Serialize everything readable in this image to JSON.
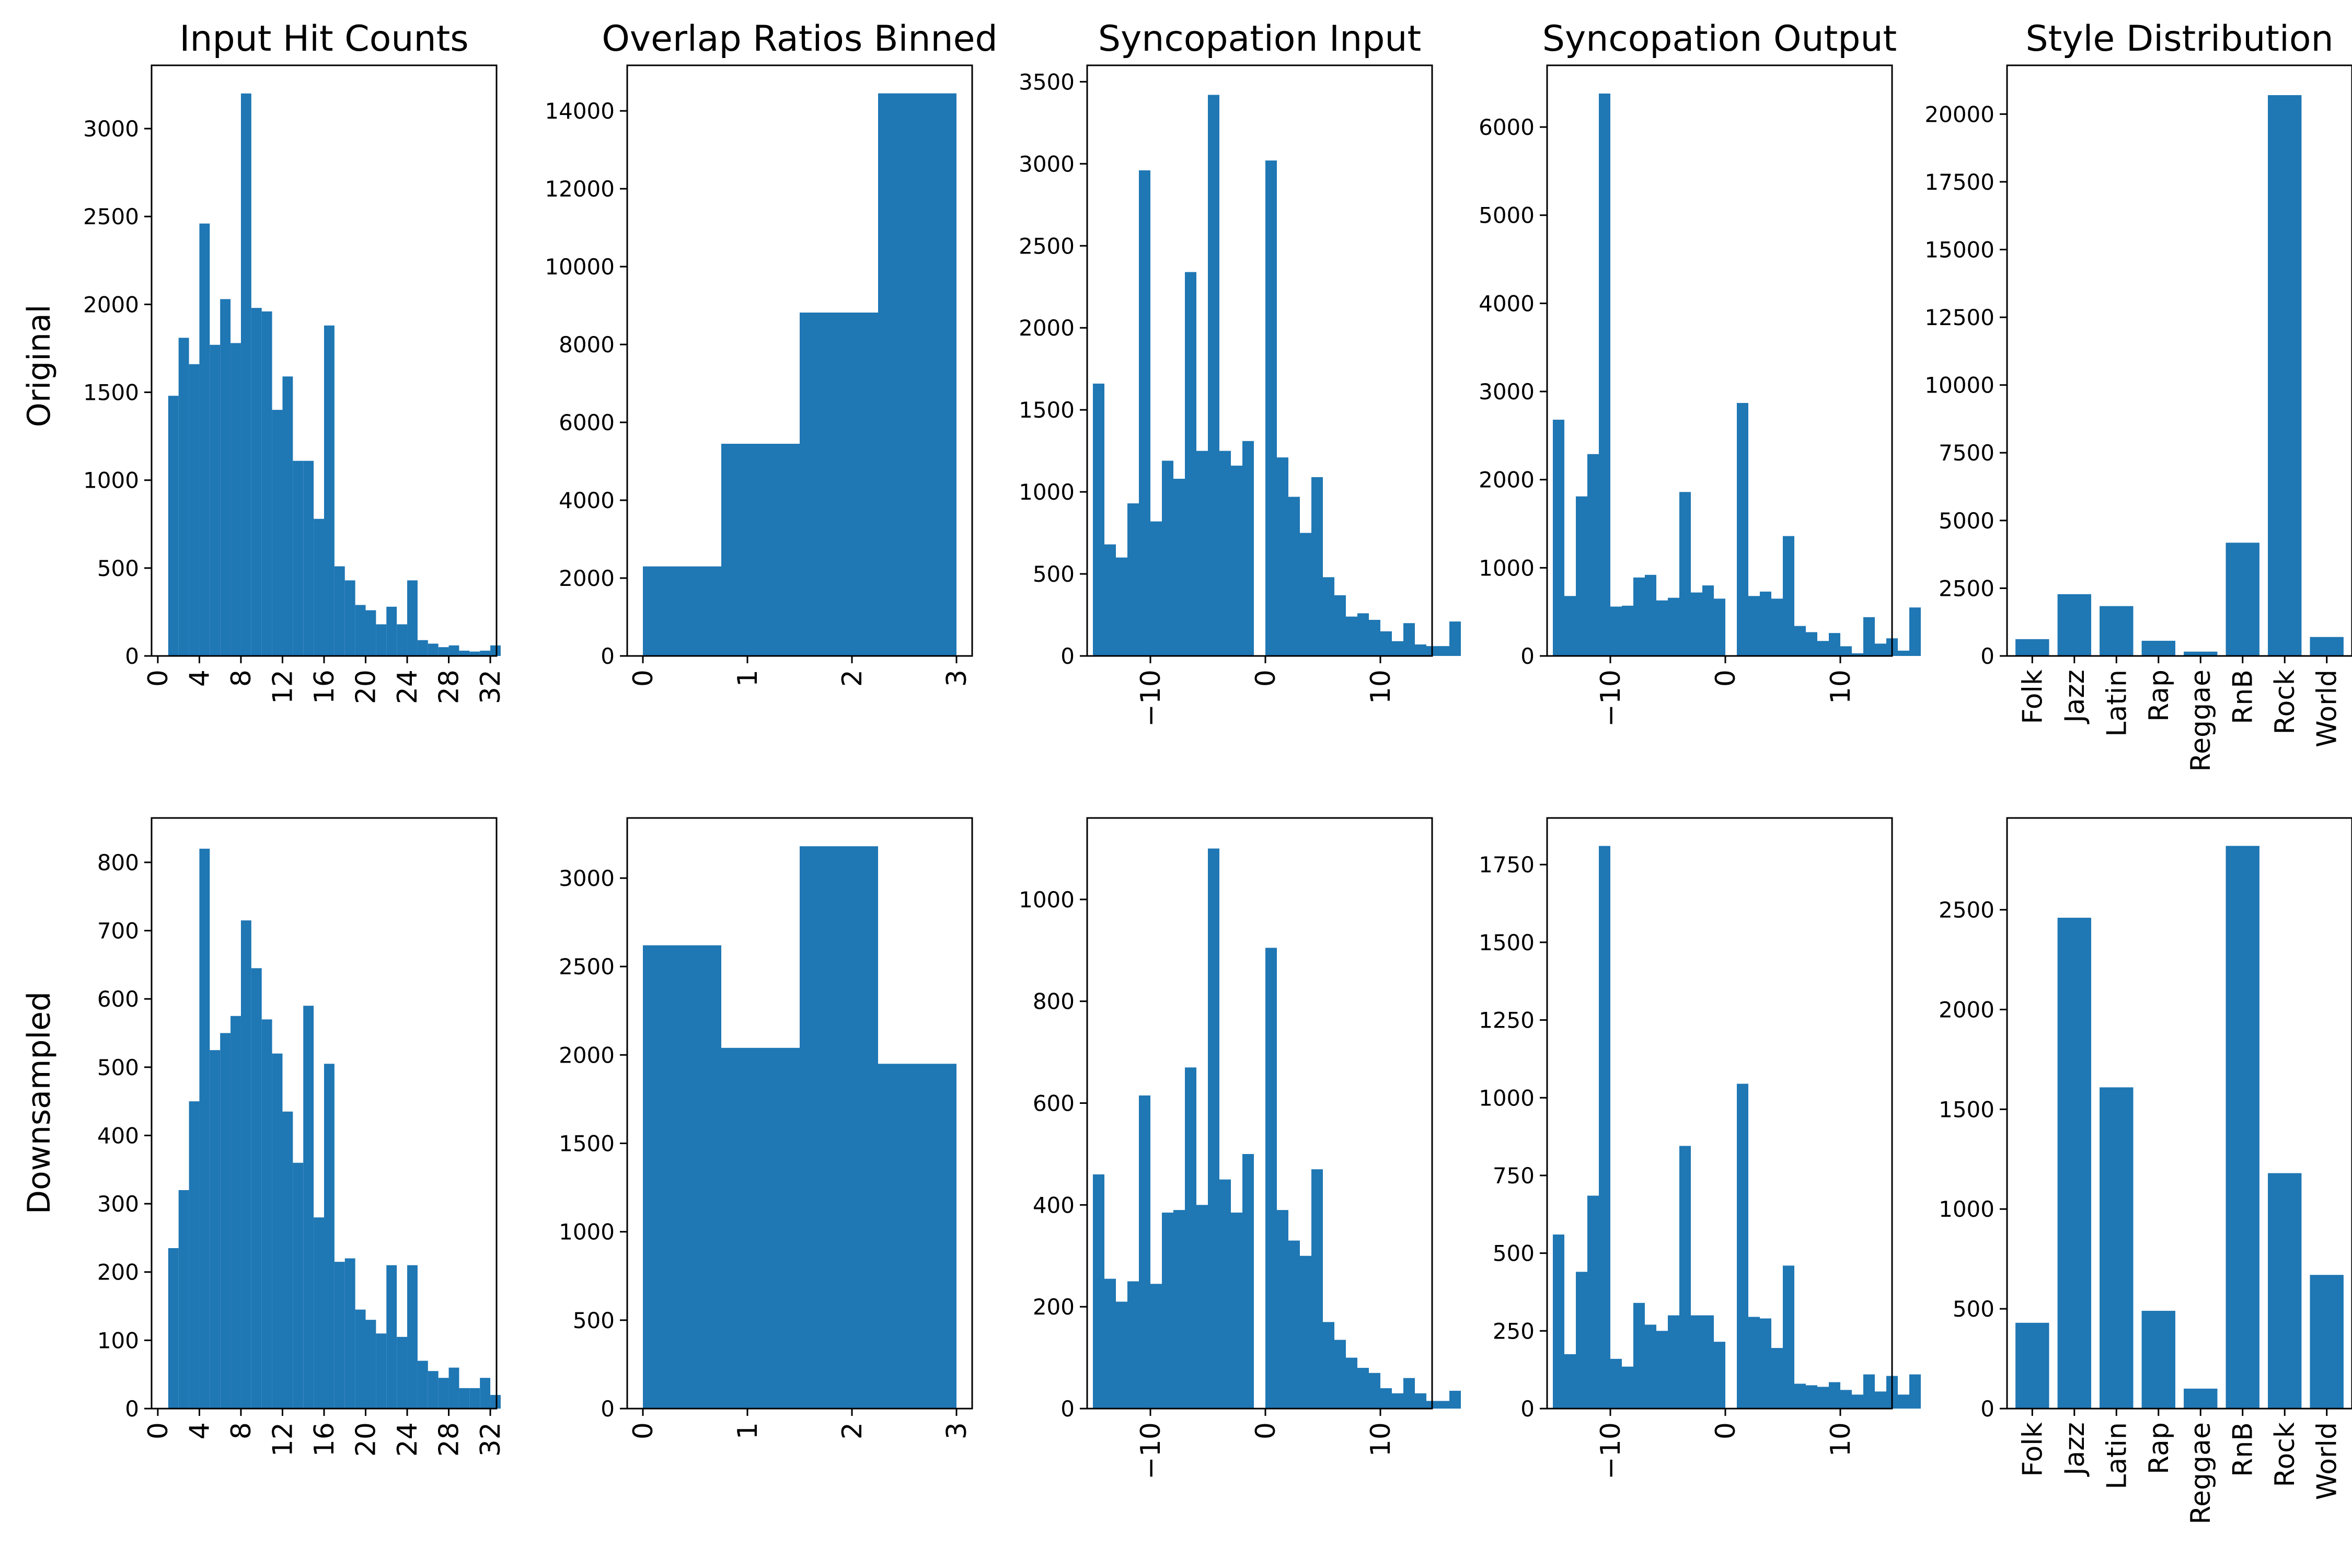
{
  "figure": {
    "row_labels": [
      "Original",
      "Downsampled"
    ],
    "col_titles": [
      "Input Hit Counts",
      "Overlap Ratios Binned",
      "Syncopation Input",
      "Syncopation Output",
      "Style Distribution"
    ],
    "bar_color": "#1f77b4"
  },
  "chart_data": [
    {
      "type": "bar",
      "title": "Input Hit Counts",
      "row_label": "Original",
      "x_start": 1,
      "x_step": 1,
      "values": [
        1480,
        1810,
        1660,
        2460,
        1770,
        2030,
        1780,
        3200,
        1980,
        1960,
        1400,
        1590,
        1110,
        1110,
        780,
        1880,
        510,
        430,
        290,
        260,
        180,
        280,
        180,
        430,
        90,
        70,
        50,
        60,
        30,
        25,
        30,
        60
      ],
      "xlim": [
        -0.6,
        32.6
      ],
      "xticks": [
        0,
        4,
        8,
        12,
        16,
        20,
        24,
        28,
        32
      ],
      "ylim": [
        0,
        3360
      ],
      "yticks": [
        0,
        500,
        1000,
        1500,
        2000,
        2500,
        3000
      ]
    },
    {
      "type": "bar",
      "title": "Overlap Ratios Binned",
      "row_label": "Original",
      "x_start": 0,
      "x_step": 0.75,
      "values": [
        2300,
        5450,
        8820,
        14450
      ],
      "xlim": [
        -0.15,
        3.15
      ],
      "xticks": [
        0,
        1,
        2,
        3
      ],
      "ylim": [
        0,
        15170
      ],
      "yticks": [
        0,
        2000,
        4000,
        6000,
        8000,
        10000,
        12000,
        14000
      ]
    },
    {
      "type": "bar",
      "title": "Syncopation Input",
      "row_label": "Original",
      "x_start": -15,
      "x_step": 1,
      "values": [
        1660,
        680,
        600,
        930,
        2960,
        820,
        1190,
        1080,
        2340,
        1250,
        3420,
        1250,
        1160,
        1310,
        0,
        3020,
        1210,
        970,
        750,
        1090,
        480,
        370,
        240,
        260,
        220,
        150,
        90,
        200,
        70,
        60,
        60,
        210
      ],
      "xlim": [
        -15.5,
        14.5
      ],
      "xticks": [
        -10,
        0,
        10
      ],
      "ylim": [
        0,
        3600
      ],
      "yticks": [
        0,
        500,
        1000,
        1500,
        2000,
        2500,
        3000,
        3500
      ]
    },
    {
      "type": "bar",
      "title": "Syncopation Output",
      "row_label": "Original",
      "x_start": -15,
      "x_step": 1,
      "values": [
        2680,
        680,
        1810,
        2290,
        6380,
        560,
        570,
        890,
        920,
        630,
        660,
        1860,
        720,
        800,
        650,
        0,
        2870,
        680,
        730,
        650,
        1360,
        340,
        270,
        170,
        260,
        110,
        30,
        440,
        140,
        200,
        60,
        550
      ],
      "xlim": [
        -15.5,
        14.5
      ],
      "xticks": [
        -10,
        0,
        10
      ],
      "ylim": [
        0,
        6700
      ],
      "yticks": [
        0,
        1000,
        2000,
        3000,
        4000,
        5000,
        6000
      ]
    },
    {
      "type": "bar",
      "title": "Style Distribution",
      "row_label": "Original",
      "categories": [
        "Folk",
        "Jazz",
        "Latin",
        "Rap",
        "Reggae",
        "RnB",
        "Rock",
        "World"
      ],
      "values": [
        620,
        2280,
        1840,
        560,
        160,
        4180,
        20700,
        700
      ],
      "ylim": [
        0,
        21800
      ],
      "yticks": [
        0,
        2500,
        5000,
        7500,
        10000,
        12500,
        15000,
        17500,
        20000
      ]
    },
    {
      "type": "bar",
      "row_label": "Downsampled",
      "x_start": 1,
      "x_step": 1,
      "values": [
        235,
        320,
        450,
        820,
        525,
        550,
        575,
        715,
        645,
        570,
        520,
        435,
        360,
        590,
        280,
        505,
        215,
        220,
        145,
        130,
        110,
        210,
        105,
        210,
        70,
        55,
        45,
        60,
        30,
        30,
        45,
        20
      ],
      "xlim": [
        -0.6,
        32.6
      ],
      "xticks": [
        0,
        4,
        8,
        12,
        16,
        20,
        24,
        28,
        32
      ],
      "ylim": [
        0,
        865
      ],
      "yticks": [
        0,
        100,
        200,
        300,
        400,
        500,
        600,
        700,
        800
      ]
    },
    {
      "type": "bar",
      "row_label": "Downsampled",
      "x_start": 0,
      "x_step": 0.75,
      "values": [
        2620,
        2040,
        3180,
        1950
      ],
      "xlim": [
        -0.15,
        3.15
      ],
      "xticks": [
        0,
        1,
        2,
        3
      ],
      "ylim": [
        0,
        3340
      ],
      "yticks": [
        0,
        500,
        1000,
        1500,
        2000,
        2500,
        3000
      ]
    },
    {
      "type": "bar",
      "row_label": "Downsampled",
      "x_start": -15,
      "x_step": 1,
      "values": [
        460,
        255,
        210,
        250,
        615,
        245,
        385,
        390,
        670,
        400,
        1100,
        450,
        385,
        500,
        0,
        905,
        390,
        330,
        300,
        470,
        170,
        135,
        100,
        80,
        70,
        40,
        30,
        60,
        30,
        15,
        15,
        35
      ],
      "xlim": [
        -15.5,
        14.5
      ],
      "xticks": [
        -10,
        0,
        10
      ],
      "ylim": [
        0,
        1160
      ],
      "yticks": [
        0,
        200,
        400,
        600,
        800,
        1000
      ]
    },
    {
      "type": "bar",
      "row_label": "Downsampled",
      "x_start": -15,
      "x_step": 1,
      "values": [
        560,
        175,
        440,
        685,
        1810,
        160,
        135,
        340,
        270,
        250,
        300,
        845,
        300,
        300,
        215,
        0,
        1045,
        295,
        290,
        195,
        460,
        80,
        75,
        70,
        85,
        60,
        45,
        110,
        55,
        105,
        45,
        110
      ],
      "xlim": [
        -15.5,
        14.5
      ],
      "xticks": [
        -10,
        0,
        10
      ],
      "ylim": [
        0,
        1900
      ],
      "yticks": [
        0,
        250,
        500,
        750,
        1000,
        1250,
        1500,
        1750
      ]
    },
    {
      "type": "bar",
      "row_label": "Downsampled",
      "categories": [
        "Folk",
        "Jazz",
        "Latin",
        "Rap",
        "Reggae",
        "RnB",
        "Rock",
        "World"
      ],
      "values": [
        430,
        2460,
        1610,
        490,
        100,
        2820,
        1180,
        670
      ],
      "ylim": [
        0,
        2960
      ],
      "yticks": [
        0,
        500,
        1000,
        1500,
        2000,
        2500
      ]
    }
  ]
}
